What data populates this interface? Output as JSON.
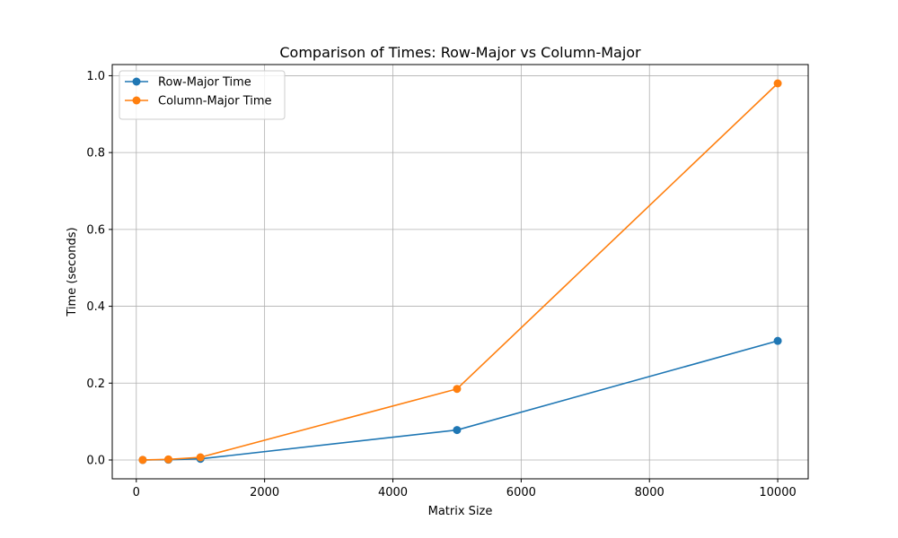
{
  "chart_data": {
    "type": "line",
    "title": "Comparison of Times: Row-Major vs Column-Major",
    "xlabel": "Matrix Size",
    "ylabel": "Time (seconds)",
    "xlim": [
      -375,
      10475
    ],
    "ylim": [
      -0.049,
      1.029
    ],
    "xticks": [
      0,
      2000,
      4000,
      6000,
      8000,
      10000
    ],
    "xtick_labels": [
      "0",
      "2000",
      "4000",
      "6000",
      "8000",
      "10000"
    ],
    "yticks": [
      0.0,
      0.2,
      0.4,
      0.6,
      0.8,
      1.0
    ],
    "ytick_labels": [
      "0.0",
      "0.2",
      "0.4",
      "0.6",
      "0.8",
      "1.0"
    ],
    "grid": true,
    "legend_position": "upper-left",
    "x": [
      100,
      500,
      1000,
      5000,
      10000
    ],
    "series": [
      {
        "name": "Row-Major Time",
        "color": "#1f77b4",
        "marker": "circle",
        "values": [
          0.0001,
          0.0008,
          0.003,
          0.078,
          0.31
        ]
      },
      {
        "name": "Column-Major Time",
        "color": "#ff7f0e",
        "marker": "circle",
        "values": [
          0.0002,
          0.0015,
          0.007,
          0.185,
          0.98
        ]
      }
    ]
  }
}
